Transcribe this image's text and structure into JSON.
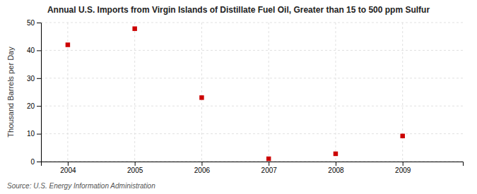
{
  "chart_data": {
    "type": "scatter",
    "title": "Annual U.S. Imports from Virgin Islands of Distillate Fuel Oil, Greater than 15 to 500 ppm Sulfur",
    "y_label": "Thousand Barrels per Day",
    "source": "Source: U.S. Energy Information Administration",
    "x": [
      2004,
      2005,
      2006,
      2007,
      2008,
      2009
    ],
    "values": [
      42.0,
      47.8,
      23.0,
      1.0,
      2.8,
      9.2
    ],
    "color": "#cc0000",
    "marker": "square",
    "xlim": [
      2003.6,
      2009.9
    ],
    "xticks": [
      2004,
      2005,
      2006,
      2007,
      2008,
      2009
    ],
    "ylim": [
      0,
      50
    ],
    "yticks": [
      0,
      10,
      20,
      30,
      40,
      50
    ],
    "grid": true
  }
}
